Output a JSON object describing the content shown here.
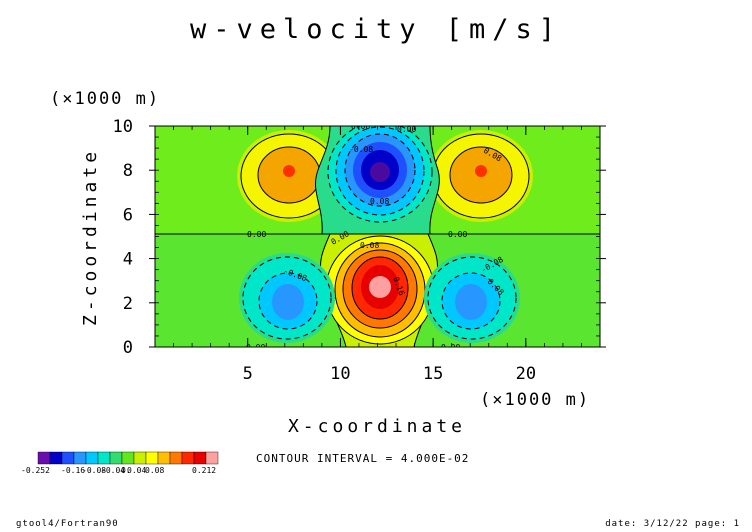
{
  "chart_data": {
    "type": "heatmap",
    "title": "w-velocity [m/s]",
    "xlabel": "X-coordinate",
    "ylabel": "Z-coordinate",
    "x_unit": "(×1000 m)",
    "y_unit": "(×1000 m)",
    "xlim": [
      0,
      24
    ],
    "ylim": [
      0,
      10
    ],
    "x_ticks": [
      5,
      10,
      15,
      20
    ],
    "y_ticks": [
      0,
      2,
      4,
      6,
      8,
      10
    ],
    "grid": false,
    "contour_interval_text": "CONTOUR INTERVAL = 4.000E-02",
    "contour_interval": 0.04,
    "colorbar": {
      "colors": [
        "#6a0dad",
        "#0000c8",
        "#1e50ff",
        "#2896ff",
        "#00c8ff",
        "#00e6c8",
        "#32dc6e",
        "#64e61e",
        "#c8f000",
        "#ffff00",
        "#ffbe00",
        "#ff7800",
        "#ff2800",
        "#e60000",
        "#ffa0a0"
      ],
      "tick_labels": [
        "-0.252",
        "-0.16",
        "-0.08",
        "-0.04",
        "0.",
        "0.04",
        "0.08",
        "0.212"
      ]
    },
    "contour_labels": [
      "0.00",
      "0.00",
      "0.00",
      "0.00",
      "0.00",
      "0.00",
      "0.00",
      "-0.08",
      "-0.08",
      "-0.08",
      "0.08",
      "0.08",
      "0.16",
      "0.08",
      "0.08"
    ],
    "features": [
      {
        "name": "upper-center minimum",
        "x": 12.3,
        "y": 7.8,
        "value": -0.252
      },
      {
        "name": "lower-center maximum",
        "x": 12.3,
        "y": 2.7,
        "value": 0.212
      },
      {
        "name": "upper-left maximum",
        "x": 7.3,
        "y": 7.9,
        "value": 0.14
      },
      {
        "name": "upper-right maximum",
        "x": 17.3,
        "y": 7.9,
        "value": 0.14
      },
      {
        "name": "lower-left minimum",
        "x": 7.3,
        "y": 2.0,
        "value": -0.13
      },
      {
        "name": "lower-right minimum",
        "x": 17.3,
        "y": 2.0,
        "value": -0.13
      }
    ]
  },
  "footer": {
    "left": "gtool4/Fortran90",
    "right": "date: 3/12/22 page: 1"
  }
}
